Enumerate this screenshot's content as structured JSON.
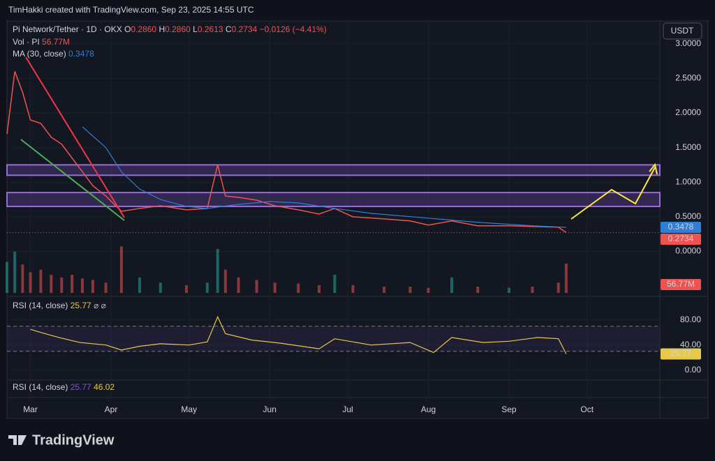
{
  "watermark": "TimHakki created with TradingView.com, Sep 23, 2025 14:55 UTC",
  "currency": "USDT",
  "brand": "TradingView",
  "chart_data": [
    {
      "type": "line",
      "title": "Pi Network/Tether · 1D · OKX",
      "ohlc": [
        [
          "O",
          "0.2860"
        ],
        [
          "H",
          "0.2860"
        ],
        [
          "L",
          "0.2613"
        ],
        [
          "C",
          "0.2734"
        ]
      ],
      "change": "−0.0126 (−4.41%)",
      "xlim": [
        "2025-02-20",
        "2025-10-29"
      ],
      "xticks": [
        {
          "value": "2025-03-01",
          "label": "Mar"
        },
        {
          "value": "2025-04-01",
          "label": "Apr"
        },
        {
          "value": "2025-05-01",
          "label": "May"
        },
        {
          "value": "2025-06-01",
          "label": "Jun"
        },
        {
          "value": "2025-07-01",
          "label": "Jul"
        },
        {
          "value": "2025-08-01",
          "label": "Aug"
        },
        {
          "value": "2025-09-01",
          "label": "Sep"
        },
        {
          "value": "2025-10-01",
          "label": "Oct"
        }
      ],
      "ylim": [
        -0.6,
        3.33
      ],
      "yticks": [
        {
          "value": 0,
          "label": "0.0000"
        },
        {
          "value": 0.5,
          "label": "0.5000"
        },
        {
          "value": 1,
          "label": "1.0000"
        },
        {
          "value": 1.5,
          "label": "1.5000"
        },
        {
          "value": 2,
          "label": "2.0000"
        },
        {
          "value": 2.5,
          "label": "2.5000"
        },
        {
          "value": 3,
          "label": "3.0000"
        }
      ],
      "zones": [
        [
          1.1,
          1.25
        ],
        [
          0.65,
          0.85
        ]
      ],
      "series": [
        {
          "color": "#ef5350",
          "last_label": "0.2734",
          "x": [
            "2025-02-20",
            "2025-02-23",
            "2025-02-26",
            "2025-03-01",
            "2025-03-05",
            "2025-03-09",
            "2025-03-13",
            "2025-03-17",
            "2025-03-21",
            "2025-03-25",
            "2025-03-30",
            "2025-04-05",
            "2025-04-12",
            "2025-04-20",
            "2025-04-30",
            "2025-05-08",
            "2025-05-12",
            "2025-05-15",
            "2025-05-20",
            "2025-05-27",
            "2025-06-03",
            "2025-06-12",
            "2025-06-20",
            "2025-06-26",
            "2025-07-03",
            "2025-07-15",
            "2025-07-25",
            "2025-08-01",
            "2025-08-10",
            "2025-08-20",
            "2025-09-01",
            "2025-09-10",
            "2025-09-20",
            "2025-09-23"
          ],
          "values": [
            1.7,
            2.6,
            2.3,
            1.9,
            1.85,
            1.65,
            1.55,
            1.35,
            1.15,
            0.95,
            0.8,
            0.58,
            0.62,
            0.66,
            0.6,
            0.62,
            1.25,
            0.8,
            0.78,
            0.74,
            0.66,
            0.6,
            0.54,
            0.62,
            0.5,
            0.47,
            0.44,
            0.38,
            0.44,
            0.37,
            0.37,
            0.36,
            0.35,
            0.2734
          ]
        },
        {
          "name": "MA (30, close)",
          "color": "#2f7fd6",
          "last_label": "0.3478",
          "x": [
            "2025-03-21",
            "2025-03-30",
            "2025-04-05",
            "2025-04-12",
            "2025-04-20",
            "2025-04-30",
            "2025-05-08",
            "2025-05-20",
            "2025-06-01",
            "2025-06-12",
            "2025-06-26",
            "2025-07-10",
            "2025-08-01",
            "2025-08-20",
            "2025-09-10",
            "2025-09-23"
          ],
          "values": [
            1.8,
            1.5,
            1.15,
            0.9,
            0.75,
            0.65,
            0.62,
            0.68,
            0.72,
            0.7,
            0.62,
            0.55,
            0.48,
            0.42,
            0.37,
            0.3478
          ]
        }
      ]
    },
    {
      "type": "bar",
      "title": "Vol · PI",
      "ylim": [
        0,
        135
      ],
      "series": [
        {
          "last_label": "56.77M",
          "values": [
            60,
            80,
            55,
            40,
            45,
            35,
            30,
            35,
            28,
            25,
            20,
            90,
            30,
            20,
            15,
            20,
            85,
            45,
            30,
            25,
            20,
            18,
            15,
            35,
            15,
            12,
            12,
            10,
            30,
            12,
            10,
            12,
            20,
            56.77
          ]
        }
      ]
    },
    {
      "type": "line",
      "title": "RSI (14, close)",
      "extra": "⌀ ⌀",
      "ylim": [
        -16,
        112
      ],
      "yticks": [
        {
          "value": 0,
          "label": "0.00"
        },
        {
          "value": 40,
          "label": "40.00"
        },
        {
          "value": 80,
          "label": "80.00"
        }
      ],
      "bands": [
        30,
        70
      ],
      "series": [
        {
          "color": "#e6c84a",
          "last_label": "25.77",
          "x": [
            "2025-03-01",
            "2025-03-05",
            "2025-03-12",
            "2025-03-20",
            "2025-03-30",
            "2025-04-05",
            "2025-04-12",
            "2025-04-20",
            "2025-05-01",
            "2025-05-08",
            "2025-05-12",
            "2025-05-15",
            "2025-05-25",
            "2025-06-05",
            "2025-06-20",
            "2025-06-26",
            "2025-07-10",
            "2025-07-25",
            "2025-08-03",
            "2025-08-10",
            "2025-08-22",
            "2025-09-01",
            "2025-09-12",
            "2025-09-20",
            "2025-09-23"
          ],
          "values": [
            65,
            60,
            52,
            44,
            40,
            32,
            38,
            42,
            40,
            45,
            85,
            58,
            48,
            43,
            34,
            50,
            40,
            44,
            28,
            52,
            44,
            46,
            52,
            50,
            25.77
          ]
        }
      ]
    },
    {
      "type": "legend",
      "title": "RSI (14, close)",
      "values": [
        "25.77",
        "46.02"
      ]
    }
  ]
}
